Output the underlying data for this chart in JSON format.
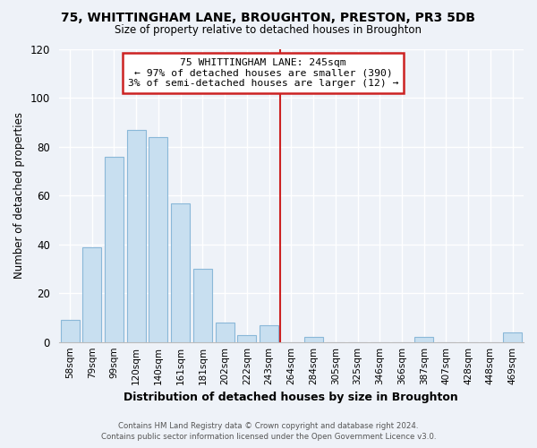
{
  "title": "75, WHITTINGHAM LANE, BROUGHTON, PRESTON, PR3 5DB",
  "subtitle": "Size of property relative to detached houses in Broughton",
  "xlabel": "Distribution of detached houses by size in Broughton",
  "ylabel": "Number of detached properties",
  "bar_labels": [
    "58sqm",
    "79sqm",
    "99sqm",
    "120sqm",
    "140sqm",
    "161sqm",
    "181sqm",
    "202sqm",
    "222sqm",
    "243sqm",
    "264sqm",
    "284sqm",
    "305sqm",
    "325sqm",
    "346sqm",
    "366sqm",
    "387sqm",
    "407sqm",
    "428sqm",
    "448sqm",
    "469sqm"
  ],
  "bar_values": [
    9,
    39,
    76,
    87,
    84,
    57,
    30,
    8,
    3,
    7,
    0,
    2,
    0,
    0,
    0,
    0,
    2,
    0,
    0,
    0,
    4
  ],
  "bar_color": "#c8dff0",
  "bar_edge_color": "#8ab8d8",
  "background_color": "#eef2f8",
  "grid_color": "#ffffff",
  "ylim": [
    0,
    120
  ],
  "yticks": [
    0,
    20,
    40,
    60,
    80,
    100,
    120
  ],
  "vline_x_index": 9,
  "vline_color": "#cc2222",
  "annotation_title": "75 WHITTINGHAM LANE: 245sqm",
  "annotation_line1": "← 97% of detached houses are smaller (390)",
  "annotation_line2": "3% of semi-detached houses are larger (12) →",
  "annotation_box_facecolor": "#ffffff",
  "annotation_box_edgecolor": "#cc2222",
  "footer_line1": "Contains HM Land Registry data © Crown copyright and database right 2024.",
  "footer_line2": "Contains public sector information licensed under the Open Government Licence v3.0."
}
